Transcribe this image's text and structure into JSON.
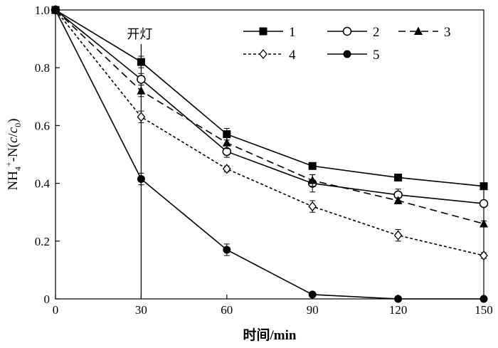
{
  "chart_data": {
    "type": "line",
    "title": "",
    "xlabel": "时间/min",
    "ylabel": {
      "prefix": "NH",
      "sub1": "4",
      "sup": "+",
      "mid": "-N(",
      "c": "c",
      "slash": "/",
      "c0": "c",
      "sub2": "0",
      "end": ")"
    },
    "x": [
      0,
      30,
      60,
      90,
      120,
      150
    ],
    "x_ticks": [
      "0",
      "30",
      "60",
      "90",
      "120",
      "150"
    ],
    "y_ticks": [
      "0",
      "0.2",
      "0.4",
      "0.6",
      "0.8",
      "1.0"
    ],
    "xlim": [
      0,
      150
    ],
    "ylim": [
      0,
      1.0
    ],
    "grid": false,
    "legend_position": "top-right",
    "annotation": {
      "text": "开灯",
      "x": 30
    },
    "series": [
      {
        "name": "1",
        "marker": "square-filled",
        "line": "solid",
        "values": [
          1.0,
          0.82,
          0.57,
          0.46,
          0.42,
          0.39
        ],
        "errors": [
          0,
          0.02,
          0.02,
          0.01,
          0.01,
          0.01
        ]
      },
      {
        "name": "2",
        "marker": "circle-open",
        "line": "solid",
        "values": [
          1.0,
          0.76,
          0.51,
          0.4,
          0.36,
          0.33
        ],
        "errors": [
          0,
          0.02,
          0.02,
          0.03,
          0.02,
          0.01
        ]
      },
      {
        "name": "3",
        "marker": "triangle-filled",
        "line": "long-dash",
        "values": [
          1.0,
          0.72,
          0.54,
          0.41,
          0.34,
          0.26
        ],
        "errors": [
          0,
          0.02,
          0.02,
          0.02,
          0.01,
          0.01
        ]
      },
      {
        "name": "4",
        "marker": "diamond-open",
        "line": "short-dash",
        "values": [
          1.0,
          0.63,
          0.45,
          0.32,
          0.22,
          0.15
        ],
        "errors": [
          0,
          0.02,
          0.01,
          0.02,
          0.02,
          0.01
        ]
      },
      {
        "name": "5",
        "marker": "circle-filled",
        "line": "solid",
        "values": [
          1.0,
          0.415,
          0.17,
          0.015,
          0.0,
          0.0
        ],
        "errors": [
          0,
          0.02,
          0.02,
          0.005,
          0,
          0
        ]
      }
    ]
  }
}
